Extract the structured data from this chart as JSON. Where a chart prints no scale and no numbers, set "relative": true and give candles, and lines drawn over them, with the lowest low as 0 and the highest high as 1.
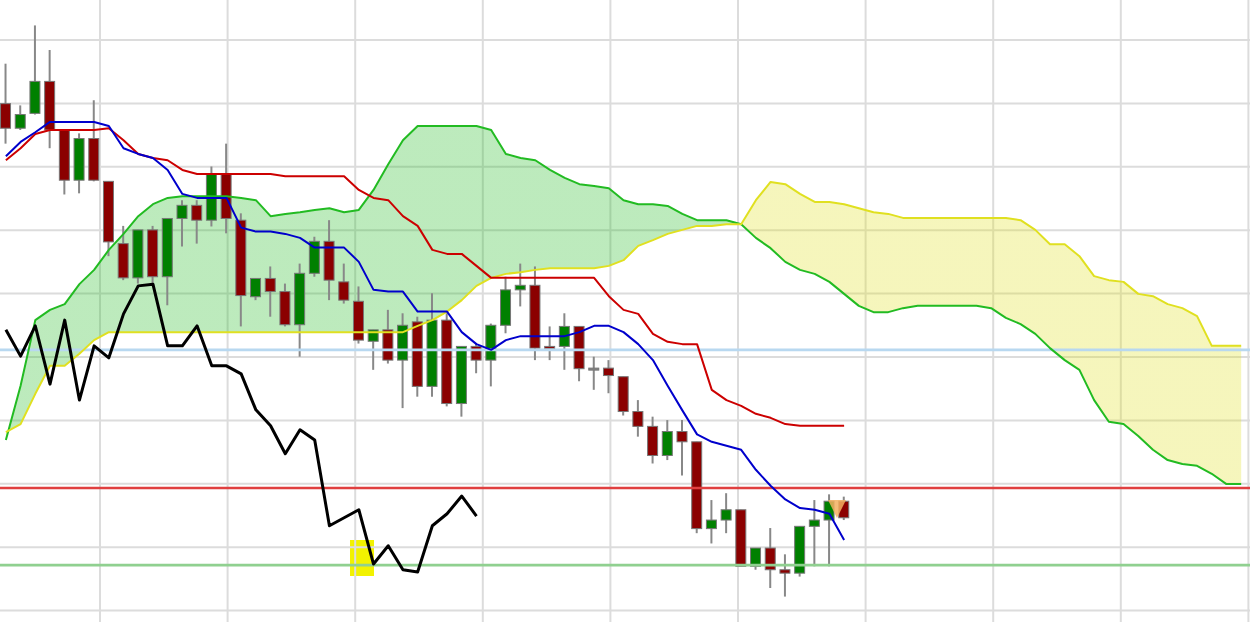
{
  "chart_data": {
    "type": "candlestick",
    "relative": true,
    "grid": true,
    "legend": false,
    "categories": [
      null,
      null,
      null,
      null,
      null,
      null,
      null,
      null,
      null,
      null,
      null,
      null,
      null,
      null,
      null,
      null,
      null,
      null,
      null,
      null,
      null,
      null,
      null,
      null,
      null,
      null,
      null,
      null,
      null,
      null,
      null,
      null,
      null,
      null,
      null,
      null,
      null,
      null,
      null,
      null,
      null,
      null,
      null,
      null,
      null,
      null,
      null,
      null,
      null,
      null,
      null,
      null,
      null,
      null,
      null,
      null,
      null,
      null,
      null,
      null,
      null,
      null,
      null,
      null,
      null,
      null,
      null,
      null,
      null,
      null,
      null,
      null,
      null,
      null,
      null,
      null,
      null,
      null,
      null,
      null,
      null,
      null,
      null,
      null,
      null
    ],
    "ohlc": [
      [
        0.863,
        0.933,
        0.793,
        0.82
      ],
      [
        0.82,
        0.86,
        0.817,
        0.844
      ],
      [
        0.846,
        1.0,
        0.844,
        0.902
      ],
      [
        0.902,
        0.957,
        0.785,
        0.817
      ],
      [
        0.816,
        0.817,
        0.704,
        0.729
      ],
      [
        0.729,
        0.811,
        0.706,
        0.802
      ],
      [
        0.802,
        0.869,
        0.727,
        0.729
      ],
      [
        0.727,
        0.727,
        0.596,
        0.621
      ],
      [
        0.618,
        0.649,
        0.554,
        0.558
      ],
      [
        0.558,
        0.642,
        0.548,
        0.642
      ],
      [
        0.642,
        0.649,
        0.548,
        0.56
      ],
      [
        0.56,
        0.662,
        0.51,
        0.662
      ],
      [
        0.662,
        0.694,
        0.613,
        0.685
      ],
      [
        0.685,
        0.694,
        0.618,
        0.659
      ],
      [
        0.659,
        0.753,
        0.648,
        0.739
      ],
      [
        0.739,
        0.793,
        0.636,
        0.662
      ],
      [
        0.659,
        0.671,
        0.473,
        0.527
      ],
      [
        0.525,
        0.557,
        0.519,
        0.557
      ],
      [
        0.557,
        0.578,
        0.49,
        0.534
      ],
      [
        0.534,
        0.548,
        0.473,
        0.476
      ],
      [
        0.476,
        0.583,
        0.42,
        0.566
      ],
      [
        0.566,
        0.63,
        0.56,
        0.622
      ],
      [
        0.622,
        0.659,
        0.519,
        0.554
      ],
      [
        0.551,
        0.583,
        0.513,
        0.519
      ],
      [
        0.517,
        0.543,
        0.443,
        0.449
      ],
      [
        0.447,
        0.467,
        0.397,
        0.467
      ],
      [
        0.467,
        0.502,
        0.408,
        0.414
      ],
      [
        0.414,
        0.496,
        0.33,
        0.475
      ],
      [
        0.481,
        0.49,
        0.35,
        0.368
      ],
      [
        0.368,
        0.531,
        0.35,
        0.484
      ],
      [
        0.484,
        0.496,
        0.333,
        0.338
      ],
      [
        0.338,
        0.438,
        0.315,
        0.438
      ],
      [
        0.438,
        0.443,
        0.391,
        0.414
      ],
      [
        0.414,
        0.478,
        0.368,
        0.475
      ],
      [
        0.475,
        0.56,
        0.461,
        0.537
      ],
      [
        0.537,
        0.583,
        0.508,
        0.545
      ],
      [
        0.545,
        0.578,
        0.414,
        0.435
      ],
      [
        0.438,
        0.473,
        0.414,
        0.436
      ],
      [
        0.438,
        0.496,
        0.397,
        0.473
      ],
      [
        0.473,
        0.473,
        0.377,
        0.399
      ],
      [
        0.4,
        0.42,
        0.362,
        0.4
      ],
      [
        0.4,
        0.414,
        0.356,
        0.387
      ],
      [
        0.385,
        0.385,
        0.317,
        0.324
      ],
      [
        0.324,
        0.344,
        0.28,
        0.298
      ],
      [
        0.298,
        0.315,
        0.233,
        0.247
      ],
      [
        0.247,
        0.309,
        0.239,
        0.289
      ],
      [
        0.289,
        0.309,
        0.212,
        0.271
      ],
      [
        0.271,
        0.271,
        0.111,
        0.119
      ],
      [
        0.119,
        0.169,
        0.093,
        0.134
      ],
      [
        0.134,
        0.181,
        0.111,
        0.152
      ],
      [
        0.152,
        0.152,
        0.053,
        0.053
      ],
      [
        0.053,
        0.085,
        0.047,
        0.085
      ],
      [
        0.085,
        0.12,
        0.015,
        0.047
      ],
      [
        0.047,
        0.074,
        0.0,
        0.041
      ],
      [
        0.041,
        0.123,
        0.035,
        0.123
      ],
      [
        0.123,
        0.169,
        0.053,
        0.134
      ],
      [
        0.134,
        0.179,
        0.053,
        0.167
      ],
      [
        0.167,
        0.175,
        0.134,
        0.138
      ],
      null,
      null,
      null,
      null,
      null,
      null,
      null,
      null,
      null,
      null,
      null,
      null,
      null,
      null,
      null,
      null,
      null,
      null,
      null,
      null,
      null,
      null,
      null,
      null,
      null,
      null,
      null
    ],
    "colors": [
      "#8b0000",
      "#008000",
      "#008000",
      "#8b0000",
      "#8b0000",
      "#008000",
      "#8b0000",
      "#8b0000",
      "#8b0000",
      "#008000",
      "#8b0000",
      "#008000",
      "#008000",
      "#8b0000",
      "#008000",
      "#8b0000",
      "#8b0000",
      "#008000",
      "#8b0000",
      "#8b0000",
      "#008000",
      "#008000",
      "#8b0000",
      "#8b0000",
      "#8b0000",
      "#008000",
      "#8b0000",
      "#008000",
      "#8b0000",
      "#008000",
      "#8b0000",
      "#008000",
      "#8b0000",
      "#008000",
      "#008000",
      "#008000",
      "#8b0000",
      "#8b0000",
      "#008000",
      "#8b0000",
      "#808080",
      "#8b0000",
      "#8b0000",
      "#8b0000",
      "#8b0000",
      "#008000",
      "#8b0000",
      "#8b0000",
      "#008000",
      "#008000",
      "#8b0000",
      "#008000",
      "#8b0000",
      "#8b0000",
      "#008000",
      "#008000",
      "#008000",
      "#8b0000",
      null,
      null,
      null,
      null,
      null,
      null,
      null,
      null,
      null,
      null,
      null,
      null,
      null,
      null,
      null,
      null,
      null,
      null,
      null,
      null,
      null,
      null,
      null,
      null,
      null,
      null,
      null
    ],
    "series": [
      {
        "type": "line",
        "color": "#22bb22",
        "lower": [
          0.288,
          0.302,
          0.355,
          0.404,
          0.404,
          0.425,
          0.449,
          0.463,
          0.463,
          0.463,
          0.463,
          0.463,
          0.463,
          0.463,
          0.463,
          0.463,
          0.463,
          0.463,
          0.463,
          0.463,
          0.463,
          0.463,
          0.463,
          0.463,
          0.463,
          0.463,
          0.463,
          0.463,
          0.474,
          0.484,
          0.499,
          0.519,
          0.544,
          0.558,
          0.565,
          0.568,
          0.572,
          0.575,
          0.575,
          0.575,
          0.575,
          0.579,
          0.589,
          0.614,
          0.624,
          0.635,
          0.642,
          0.649,
          0.649,
          0.652,
          0.652,
          0.694,
          0.726,
          0.722,
          0.705,
          0.691,
          0.691,
          0.687,
          0.68,
          0.673,
          0.67,
          0.663,
          0.663,
          0.663,
          0.663,
          0.663,
          0.663,
          0.663,
          0.663,
          0.659,
          0.642,
          0.617,
          0.617,
          0.596,
          0.561,
          0.554,
          0.551,
          0.53,
          0.526,
          0.512,
          0.505,
          0.491,
          0.439,
          0.439,
          0.439
        ],
        "upper": [
          0.274,
          0.369,
          0.484,
          0.502,
          0.512,
          0.547,
          0.572,
          0.607,
          0.635,
          0.666,
          0.687,
          0.698,
          0.701,
          0.701,
          0.701,
          0.701,
          0.698,
          0.694,
          0.666,
          0.67,
          0.673,
          0.677,
          0.68,
          0.673,
          0.677,
          0.712,
          0.757,
          0.799,
          0.824,
          0.824,
          0.824,
          0.824,
          0.824,
          0.817,
          0.775,
          0.768,
          0.764,
          0.747,
          0.733,
          0.722,
          0.719,
          0.715,
          0.694,
          0.687,
          0.687,
          0.684,
          0.67,
          0.659,
          0.659,
          0.659,
          0.652,
          0.628,
          0.61,
          0.586,
          0.572,
          0.565,
          0.551,
          0.53,
          0.509,
          0.498,
          0.498,
          0.505,
          0.509,
          0.509,
          0.509,
          0.509,
          0.509,
          0.505,
          0.488,
          0.477,
          0.46,
          0.435,
          0.414,
          0.397,
          0.344,
          0.306,
          0.302,
          0.281,
          0.257,
          0.239,
          0.232,
          0.229,
          0.215,
          0.197,
          0.197
        ],
        "values": [
          0.274,
          0.369,
          0.484,
          0.502,
          0.512,
          0.547,
          0.572,
          0.607,
          0.635,
          0.666,
          0.687,
          0.698,
          0.701,
          0.701,
          0.701,
          0.701,
          0.698,
          0.694,
          0.666,
          0.67,
          0.673,
          0.677,
          0.68,
          0.673,
          0.677,
          0.712,
          0.757,
          0.799,
          0.824,
          0.824,
          0.824,
          0.824,
          0.824,
          0.817,
          0.775,
          0.768,
          0.764,
          0.747,
          0.733,
          0.722,
          0.719,
          0.715,
          0.694,
          0.687,
          0.687,
          0.684,
          0.67,
          0.659,
          0.659,
          0.659,
          0.652,
          0.628,
          0.61,
          0.586,
          0.572,
          0.565,
          0.551,
          0.53,
          0.509,
          0.498,
          0.498,
          0.505,
          0.509,
          0.509,
          0.509,
          0.509,
          0.509,
          0.505,
          0.488,
          0.477,
          0.46,
          0.435,
          0.414,
          0.397,
          0.344,
          0.306,
          0.302,
          0.281,
          0.257,
          0.239,
          0.232,
          0.229,
          0.215,
          0.197,
          0.197
        ]
      },
      {
        "type": "line",
        "color": "#e0e020",
        "values": [
          0.288,
          0.302,
          0.355,
          0.404,
          0.404,
          0.425,
          0.449,
          0.463,
          0.463,
          0.463,
          0.463,
          0.463,
          0.463,
          0.463,
          0.463,
          0.463,
          0.463,
          0.463,
          0.463,
          0.463,
          0.463,
          0.463,
          0.463,
          0.463,
          0.463,
          0.463,
          0.463,
          0.463,
          0.474,
          0.484,
          0.499,
          0.519,
          0.544,
          0.558,
          0.565,
          0.568,
          0.572,
          0.575,
          0.575,
          0.575,
          0.575,
          0.579,
          0.589,
          0.614,
          0.624,
          0.635,
          0.642,
          0.649,
          0.649,
          0.652,
          0.652,
          0.694,
          0.726,
          0.722,
          0.705,
          0.691,
          0.691,
          0.687,
          0.68,
          0.673,
          0.67,
          0.663,
          0.663,
          0.663,
          0.663,
          0.663,
          0.663,
          0.663,
          0.663,
          0.659,
          0.642,
          0.617,
          0.617,
          0.596,
          0.561,
          0.554,
          0.551,
          0.53,
          0.526,
          0.512,
          0.505,
          0.491,
          0.439,
          0.439,
          0.439
        ]
      },
      {
        "type": "line",
        "color": "#cc0000",
        "values": [
          0.764,
          0.785,
          0.81,
          0.817,
          0.817,
          0.817,
          0.817,
          0.82,
          0.799,
          0.775,
          0.768,
          0.764,
          0.747,
          0.74,
          0.74,
          0.74,
          0.74,
          0.74,
          0.74,
          0.736,
          0.736,
          0.736,
          0.736,
          0.736,
          0.712,
          0.698,
          0.694,
          0.666,
          0.649,
          0.607,
          0.6,
          0.6,
          0.579,
          0.558,
          0.558,
          0.558,
          0.558,
          0.558,
          0.558,
          0.558,
          0.558,
          0.526,
          0.502,
          0.495,
          0.46,
          0.446,
          0.442,
          0.442,
          0.362,
          0.344,
          0.334,
          0.32,
          0.313,
          0.302,
          0.299,
          0.299,
          0.299,
          0.299,
          null,
          null,
          null,
          null,
          null,
          null,
          null,
          null,
          null,
          null,
          null,
          null,
          null,
          null,
          null,
          null,
          null,
          null,
          null,
          null,
          null,
          null,
          null,
          null,
          null,
          null,
          null
        ]
      },
      {
        "type": "line",
        "color": "#0000cc",
        "values": [
          0.771,
          0.796,
          0.813,
          0.831,
          0.831,
          0.831,
          0.831,
          0.824,
          0.785,
          0.775,
          0.768,
          0.747,
          0.705,
          0.698,
          0.698,
          0.698,
          0.646,
          0.639,
          0.639,
          0.635,
          0.628,
          0.611,
          0.611,
          0.611,
          0.586,
          0.537,
          0.534,
          0.534,
          0.499,
          0.499,
          0.499,
          0.463,
          0.442,
          0.432,
          0.449,
          0.456,
          0.456,
          0.456,
          0.456,
          0.463,
          0.474,
          0.474,
          0.463,
          0.442,
          0.414,
          0.369,
          0.326,
          0.284,
          0.271,
          0.264,
          0.257,
          0.222,
          0.194,
          0.17,
          0.155,
          0.152,
          0.145,
          0.099,
          null,
          null,
          null,
          null,
          null,
          null,
          null,
          null,
          null,
          null,
          null,
          null,
          null,
          null,
          null,
          null,
          null,
          null,
          null,
          null,
          null,
          null,
          null,
          null,
          null,
          null,
          null
        ]
      },
      {
        "type": "line",
        "color": "#000000",
        "values": [
          0.467,
          0.421,
          0.474,
          0.372,
          0.484,
          0.344,
          0.439,
          0.418,
          0.495,
          0.544,
          0.547,
          0.439,
          0.439,
          0.474,
          0.404,
          0.404,
          0.39,
          0.327,
          0.299,
          0.25,
          0.292,
          0.274,
          0.124,
          0.138,
          0.152,
          0.057,
          0.089,
          0.047,
          0.043,
          0.124,
          0.145,
          0.176,
          0.141,
          null,
          null,
          null,
          null,
          null,
          null,
          null,
          null,
          null,
          null,
          null,
          null,
          null,
          null,
          null,
          null,
          null,
          null,
          null,
          null,
          null,
          null,
          null,
          null,
          null,
          null,
          null,
          null,
          null,
          null,
          null,
          null,
          null,
          null,
          null,
          null,
          null,
          null,
          null,
          null,
          null,
          null,
          null,
          null,
          null,
          null,
          null,
          null,
          null,
          null,
          null,
          null
        ]
      }
    ],
    "ref_lines": [
      {
        "axis": "y",
        "value": 0.432,
        "color": "#b8d8f0"
      },
      {
        "axis": "y",
        "value": 0.19,
        "color": "#e04040"
      },
      {
        "axis": "y",
        "value": 0.055,
        "color": "#90d090"
      }
    ]
  }
}
